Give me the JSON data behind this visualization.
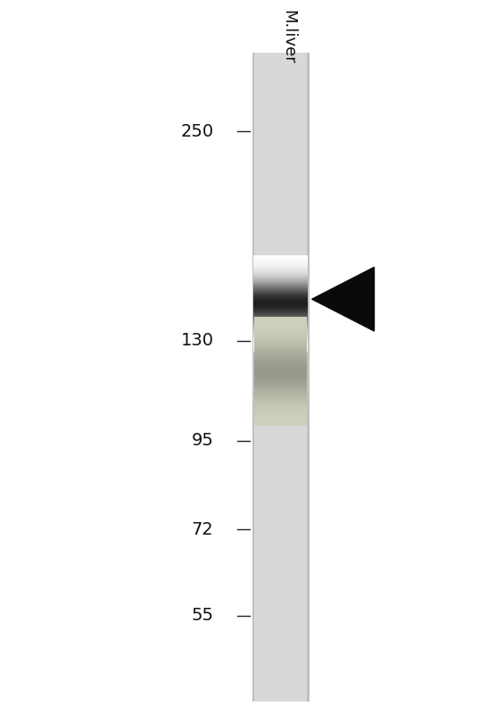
{
  "background_color": "#ffffff",
  "lane_label": "M.liver",
  "lane_color": "#d8d8d8",
  "mw_markers": [
    250,
    130,
    95,
    72,
    55
  ],
  "band_mw": 146,
  "band_color": "#111111",
  "smear_color": "#777755",
  "arrow_color": "#0a0a0a",
  "figsize": [
    5.65,
    8.0
  ],
  "dpi": 100
}
